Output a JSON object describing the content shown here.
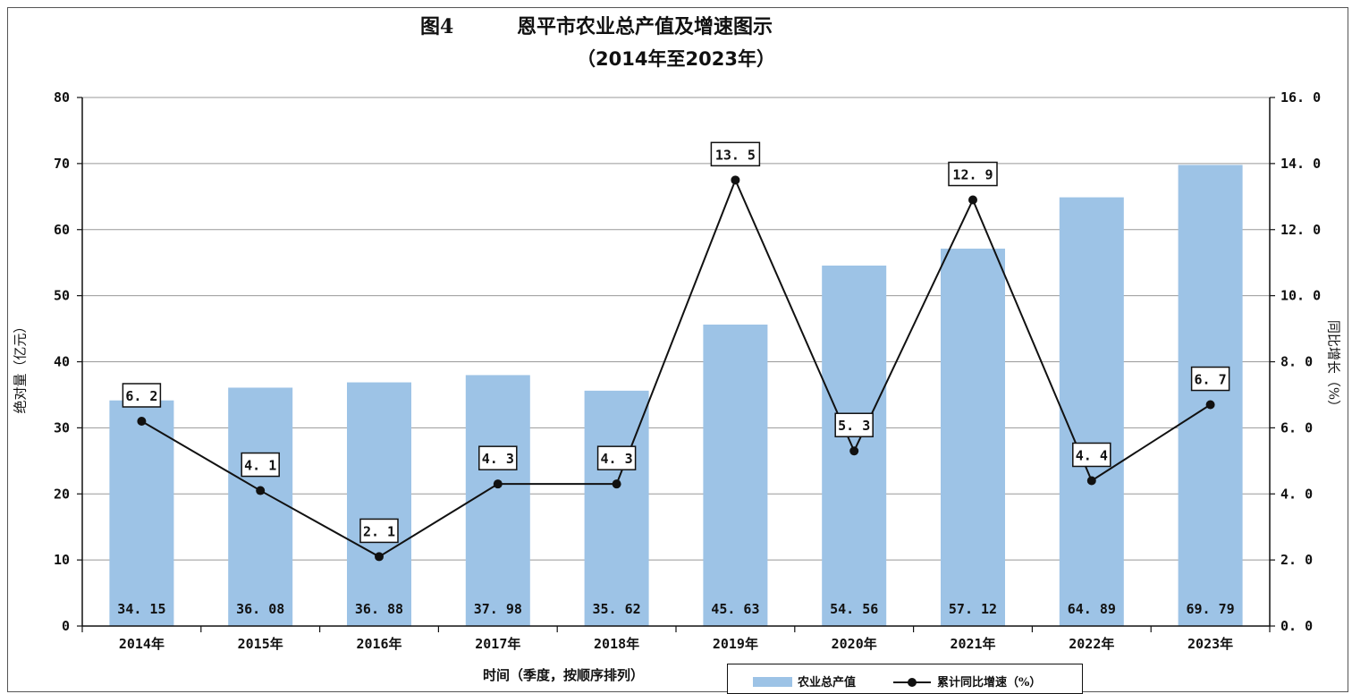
{
  "figure": {
    "fig_no": "图4",
    "title": "恩平市农业总产值及增速图示",
    "subtitle": "（2014年至2023年）",
    "y_left_label": "绝对量（亿元）",
    "y_right_label": "同比增长（%）",
    "x_label": "时间（季度，按顺序排列）"
  },
  "legend": {
    "bar_label": "农业总产值",
    "line_label": "累计同比增速（%）"
  },
  "colors": {
    "bar": "#9dc3e6",
    "line": "#111111",
    "grid": "#999999"
  },
  "chart_data": {
    "type": "bar",
    "categories": [
      "2014年",
      "2015年",
      "2016年",
      "2017年",
      "2018年",
      "2019年",
      "2020年",
      "2021年",
      "2022年",
      "2023年"
    ],
    "series": [
      {
        "name": "农业总产值",
        "type": "bar",
        "axis": "left",
        "values": [
          34.15,
          36.08,
          36.88,
          37.98,
          35.62,
          45.63,
          54.56,
          57.12,
          64.89,
          69.79
        ],
        "labels": [
          "34. 15",
          "36. 08",
          "36. 88",
          "37. 98",
          "35. 62",
          "45. 63",
          "54. 56",
          "57. 12",
          "64. 89",
          "69. 79"
        ]
      },
      {
        "name": "累计同比增速（%）",
        "type": "line",
        "axis": "right",
        "values": [
          6.2,
          4.1,
          2.1,
          4.3,
          4.3,
          13.5,
          5.3,
          12.9,
          4.4,
          6.7
        ],
        "labels": [
          "6. 2",
          "4. 1",
          "2. 1",
          "4. 3",
          "4. 3",
          "13. 5",
          "5. 3",
          "12. 9",
          "4. 4",
          "6. 7"
        ]
      }
    ],
    "ylim_left": [
      0,
      80
    ],
    "ylim_right": [
      0,
      16
    ],
    "yticks_left": [
      "0",
      "10",
      "20",
      "30",
      "40",
      "50",
      "60",
      "70",
      "80"
    ],
    "yticks_right": [
      "0. 0",
      "2. 0",
      "4. 0",
      "6. 0",
      "8. 0",
      "10. 0",
      "12. 0",
      "14. 0",
      "16. 0"
    ],
    "grid": true,
    "legend_position": "bottom-right"
  }
}
